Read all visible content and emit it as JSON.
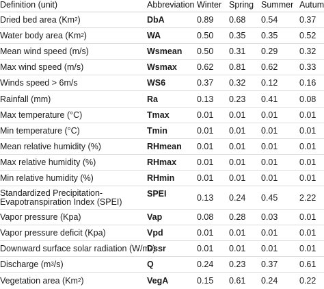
{
  "table": {
    "headers": {
      "definition": "Definition (unit)",
      "abbreviation": "Abbreviation",
      "winter": "Winter",
      "spring": "Spring",
      "summer": "Summer",
      "autumn": "Autumn"
    },
    "rows": [
      {
        "definition": "Dried bed area (Km2)",
        "def_main": "Dried bed area (Km",
        "def_sup": "2",
        "def_tail": ")",
        "abbreviation": "DbA",
        "winter": "0.89",
        "spring": "0.68",
        "summer": "0.54",
        "autumn": "0.37"
      },
      {
        "definition": "Water body area (Km2)",
        "def_main": "Water body area (Km",
        "def_sup": "2",
        "def_tail": ")",
        "abbreviation": "WA",
        "winter": "0.50",
        "spring": "0.35",
        "summer": "0.35",
        "autumn": "0.52"
      },
      {
        "definition": "Mean wind speed (m/s)",
        "abbreviation": "Wsmean",
        "winter": "0.50",
        "spring": "0.31",
        "summer": "0.29",
        "autumn": "0.32"
      },
      {
        "definition": "Max wind speed (m/s)",
        "abbreviation": "Wsmax",
        "winter": "0.62",
        "spring": "0.81",
        "summer": "0.62",
        "autumn": "0.33"
      },
      {
        "definition": "Winds speed > 6m/s",
        "abbreviation": "WS6",
        "winter": "0.37",
        "spring": "0.32",
        "summer": "0.12",
        "autumn": "0.16"
      },
      {
        "definition": "Rainfall (mm)",
        "abbreviation": "Ra",
        "winter": "0.13",
        "spring": "0.23",
        "summer": "0.41",
        "autumn": "0.08"
      },
      {
        "definition": "Max temperature (°C)",
        "abbreviation": "Tmax",
        "winter": "0.01",
        "spring": "0.01",
        "summer": "0.01",
        "autumn": "0.01"
      },
      {
        "definition": "Min temperature (°C)",
        "abbreviation": "Tmin",
        "winter": "0.01",
        "spring": "0.01",
        "summer": "0.01",
        "autumn": "0.01"
      },
      {
        "definition": "Mean relative humidity (%)",
        "abbreviation": "RHmean",
        "winter": "0.01",
        "spring": "0.01",
        "summer": "0.01",
        "autumn": "0.01"
      },
      {
        "definition": "Max relative humidity (%)",
        "abbreviation": "RHmax",
        "winter": "0.01",
        "spring": "0.01",
        "summer": "0.01",
        "autumn": "0.01"
      },
      {
        "definition": "Min relative humidity (%)",
        "abbreviation": "RHmin",
        "winter": "0.01",
        "spring": "0.01",
        "summer": "0.01",
        "autumn": "0.01"
      },
      {
        "definition": "Standardized Precipitation-Evapotranspiration Index (SPEI)",
        "def_line1": "Standardized Precipitation-",
        "def_line2": "Evapotranspiration Index (SPEI)",
        "abbreviation": "SPEI",
        "winter": "0.13",
        "spring": "0.24",
        "summer": "0.45",
        "autumn": "2.22"
      },
      {
        "definition": "Vapor pressure (Kpa)",
        "abbreviation": "Vap",
        "winter": "0.08",
        "spring": "0.28",
        "summer": "0.03",
        "autumn": "0.01"
      },
      {
        "definition": "Vapor pressure deficit (Kpa)",
        "abbreviation": "Vpd",
        "winter": "0.01",
        "spring": "0.01",
        "summer": "0.01",
        "autumn": "0.01"
      },
      {
        "definition": "Downward surface solar radiation (W/m2)",
        "def_main": "Downward surface solar radiation (W/m",
        "def_sup": "2",
        "def_tail": ")",
        "abbreviation": "Dssr",
        "winter": "0.01",
        "spring": "0.01",
        "summer": "0.01",
        "autumn": "0.01"
      },
      {
        "definition": "Discharge (m3/s)",
        "def_main": "Discharge (m",
        "def_sup": "3",
        "def_tail": "/s)",
        "abbreviation": "Q",
        "winter": "0.24",
        "spring": "0.23",
        "summer": "0.37",
        "autumn": "0.61"
      },
      {
        "definition": "Vegetation area (Km2)",
        "def_main": "Vegetation area (Km",
        "def_sup": "2",
        "def_tail": ")",
        "abbreviation": "VegA",
        "winter": "0.15",
        "spring": "0.61",
        "summer": "0.24",
        "autumn": "0.22"
      }
    ]
  }
}
